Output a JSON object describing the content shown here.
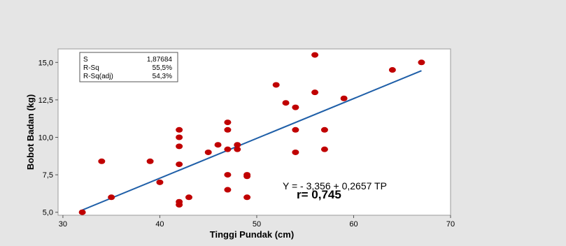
{
  "chart_data": {
    "type": "scatter",
    "xlabel": "Tinggi Pundak (cm)",
    "ylabel": "Bobot Badan (kg)",
    "xlim": [
      29.5,
      70
    ],
    "ylim": [
      4.8,
      15.9
    ],
    "x_ticks": [
      30,
      40,
      50,
      60,
      70
    ],
    "y_ticks": [
      5.0,
      7.5,
      10.0,
      12.5,
      15.0
    ],
    "x_tick_labels": [
      "30",
      "40",
      "50",
      "60",
      "70"
    ],
    "y_tick_labels": [
      "5,0",
      "7,5",
      "10,0",
      "12,5",
      "15,0"
    ],
    "points": [
      {
        "x": 32,
        "y": 5.0
      },
      {
        "x": 34,
        "y": 8.4
      },
      {
        "x": 35,
        "y": 6.0
      },
      {
        "x": 39,
        "y": 8.4
      },
      {
        "x": 40,
        "y": 7.0
      },
      {
        "x": 42,
        "y": 10.5
      },
      {
        "x": 42,
        "y": 10.0
      },
      {
        "x": 42,
        "y": 9.4
      },
      {
        "x": 42,
        "y": 8.2
      },
      {
        "x": 42,
        "y": 5.7
      },
      {
        "x": 42,
        "y": 5.5
      },
      {
        "x": 43,
        "y": 6.0
      },
      {
        "x": 45,
        "y": 9.0
      },
      {
        "x": 46,
        "y": 9.5
      },
      {
        "x": 47,
        "y": 11.0
      },
      {
        "x": 47,
        "y": 10.5
      },
      {
        "x": 47,
        "y": 9.2
      },
      {
        "x": 47,
        "y": 7.5
      },
      {
        "x": 47,
        "y": 6.5
      },
      {
        "x": 48,
        "y": 9.5
      },
      {
        "x": 48,
        "y": 9.2
      },
      {
        "x": 49,
        "y": 7.5
      },
      {
        "x": 49,
        "y": 7.4
      },
      {
        "x": 49,
        "y": 6.0
      },
      {
        "x": 52,
        "y": 13.5
      },
      {
        "x": 53,
        "y": 12.3
      },
      {
        "x": 54,
        "y": 12.0
      },
      {
        "x": 54,
        "y": 10.5
      },
      {
        "x": 54,
        "y": 9.0
      },
      {
        "x": 56,
        "y": 15.5
      },
      {
        "x": 56,
        "y": 13.0
      },
      {
        "x": 57,
        "y": 10.5
      },
      {
        "x": 57,
        "y": 9.2
      },
      {
        "x": 59,
        "y": 12.6
      },
      {
        "x": 64,
        "y": 14.5
      },
      {
        "x": 67,
        "y": 15.0
      }
    ],
    "fit_line": {
      "intercept": -3.356,
      "slope": 0.2657,
      "x_range": [
        32,
        67
      ]
    },
    "stats_box": [
      {
        "label": "S",
        "value": "1,87684"
      },
      {
        "label": "R-Sq",
        "value": "55,5%"
      },
      {
        "label": "R-Sq(adj)",
        "value": "54,3%"
      }
    ],
    "annotations": {
      "equation": "Y = - 3,356 + 0,2657 TP",
      "correlation": "r= 0,745"
    },
    "grid": false,
    "colors": {
      "background": "#e5e5e5",
      "plot_area": "#ffffff",
      "points": "#c00000",
      "fit_line": "#1f5fa8",
      "text": "#000000"
    }
  }
}
